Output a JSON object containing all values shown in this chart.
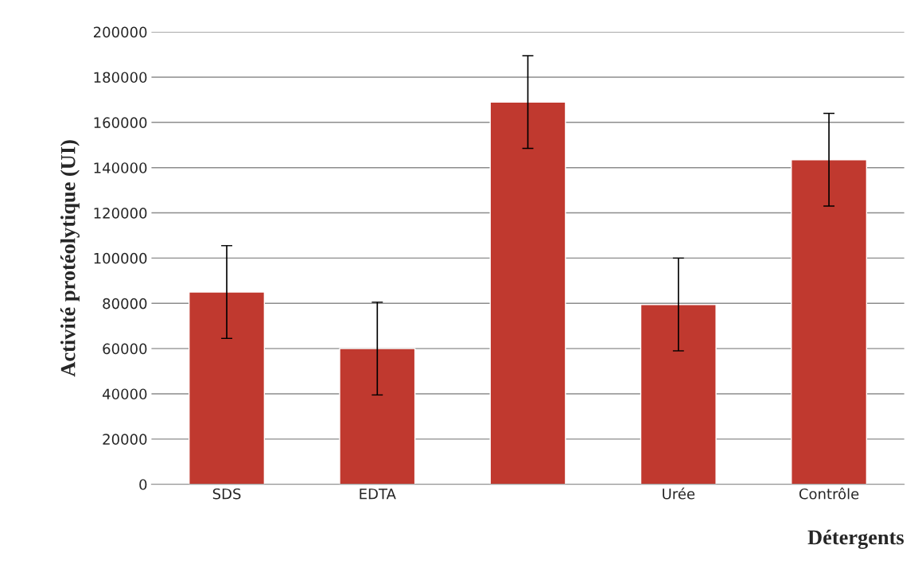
{
  "chart_data": {
    "type": "bar",
    "xlabel": "Détergents",
    "ylabel": "Activité protéolytique (UI)",
    "categories": [
      "SDS",
      "EDTA",
      null,
      "Urée",
      "Contrôle"
    ],
    "values": [
      85000,
      60000,
      169000,
      79500,
      143500
    ],
    "errors": [
      20500,
      20500,
      20500,
      20500,
      20500
    ],
    "color": "#c0392f",
    "ylim": [
      0,
      200000
    ],
    "yticks": [
      0,
      20000,
      40000,
      60000,
      80000,
      100000,
      120000,
      140000,
      160000,
      180000,
      200000
    ],
    "grid": "y"
  }
}
